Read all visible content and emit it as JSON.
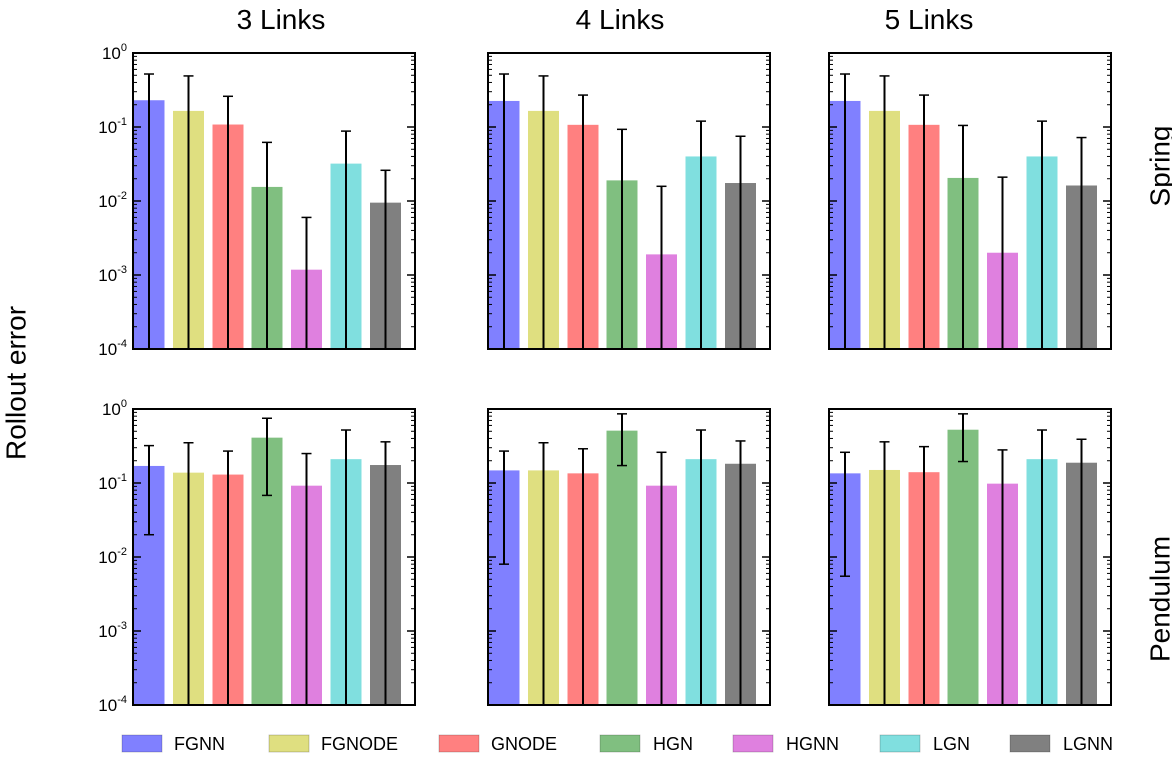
{
  "chart_data": {
    "type": "bar",
    "ylabel": "Rollout error",
    "yscale": "log",
    "ylim": [
      0.0001,
      1
    ],
    "columns": [
      "3 Links",
      "4 Links",
      "5 Links"
    ],
    "rows": [
      "Spring",
      "Pendulum"
    ],
    "series_names": [
      "FGNN",
      "FGNODE",
      "GNODE",
      "HGN",
      "HGNN",
      "LGN",
      "LGNN"
    ],
    "colors": [
      "#8080ff",
      "#dfdf80",
      "#ff8080",
      "#80bf80",
      "#df80df",
      "#80dfdf",
      "#808080"
    ],
    "yticks": [
      {
        "base": "10",
        "exp": "-4",
        "value": 0.0001
      },
      {
        "base": "10",
        "exp": "-3",
        "value": 0.001
      },
      {
        "base": "10",
        "exp": "-2",
        "value": 0.01
      },
      {
        "base": "10",
        "exp": "-1",
        "value": 0.1
      },
      {
        "base": "10",
        "exp": "0",
        "value": 1
      }
    ],
    "legend_position": "bottom",
    "panels": [
      {
        "row": "Spring",
        "column": "3 Links",
        "values": [
          0.23,
          0.165,
          0.108,
          0.0155,
          0.00118,
          0.032,
          0.0095
        ],
        "err_low": [
          0.0001,
          0.0001,
          0.0001,
          0.0001,
          0.0001,
          0.0001,
          0.0001
        ],
        "err_high": [
          0.52,
          0.49,
          0.26,
          0.062,
          0.006,
          0.088,
          0.026
        ]
      },
      {
        "row": "Spring",
        "column": "4 Links",
        "values": [
          0.225,
          0.165,
          0.107,
          0.019,
          0.0019,
          0.04,
          0.0175
        ],
        "err_low": [
          0.0001,
          0.0001,
          0.0001,
          0.0001,
          0.0001,
          0.0001,
          0.0001
        ],
        "err_high": [
          0.52,
          0.49,
          0.27,
          0.093,
          0.0158,
          0.12,
          0.075
        ]
      },
      {
        "row": "Spring",
        "column": "5 Links",
        "values": [
          0.225,
          0.165,
          0.107,
          0.0205,
          0.002,
          0.04,
          0.0162
        ],
        "err_low": [
          0.0001,
          0.0001,
          0.0001,
          0.0001,
          0.0001,
          0.0001,
          0.0001
        ],
        "err_high": [
          0.52,
          0.49,
          0.27,
          0.105,
          0.021,
          0.12,
          0.072
        ]
      },
      {
        "row": "Pendulum",
        "column": "3 Links",
        "values": [
          0.17,
          0.138,
          0.13,
          0.41,
          0.092,
          0.21,
          0.175
        ],
        "err_low": [
          0.02,
          0.0001,
          0.0001,
          0.068,
          0.0001,
          0.0001,
          0.0001
        ],
        "err_high": [
          0.32,
          0.35,
          0.27,
          0.75,
          0.25,
          0.52,
          0.36
        ]
      },
      {
        "row": "Pendulum",
        "column": "4 Links",
        "values": [
          0.148,
          0.148,
          0.135,
          0.51,
          0.092,
          0.21,
          0.182
        ],
        "err_low": [
          0.008,
          0.0001,
          0.0001,
          0.172,
          0.0001,
          0.0001,
          0.0001
        ],
        "err_high": [
          0.27,
          0.35,
          0.29,
          0.86,
          0.26,
          0.52,
          0.37
        ]
      },
      {
        "row": "Pendulum",
        "column": "5 Links",
        "values": [
          0.135,
          0.15,
          0.14,
          0.525,
          0.098,
          0.21,
          0.188
        ],
        "err_low": [
          0.0055,
          0.0001,
          0.0001,
          0.195,
          0.0001,
          0.0001,
          0.0001
        ],
        "err_high": [
          0.26,
          0.36,
          0.31,
          0.86,
          0.28,
          0.52,
          0.39
        ]
      }
    ]
  }
}
